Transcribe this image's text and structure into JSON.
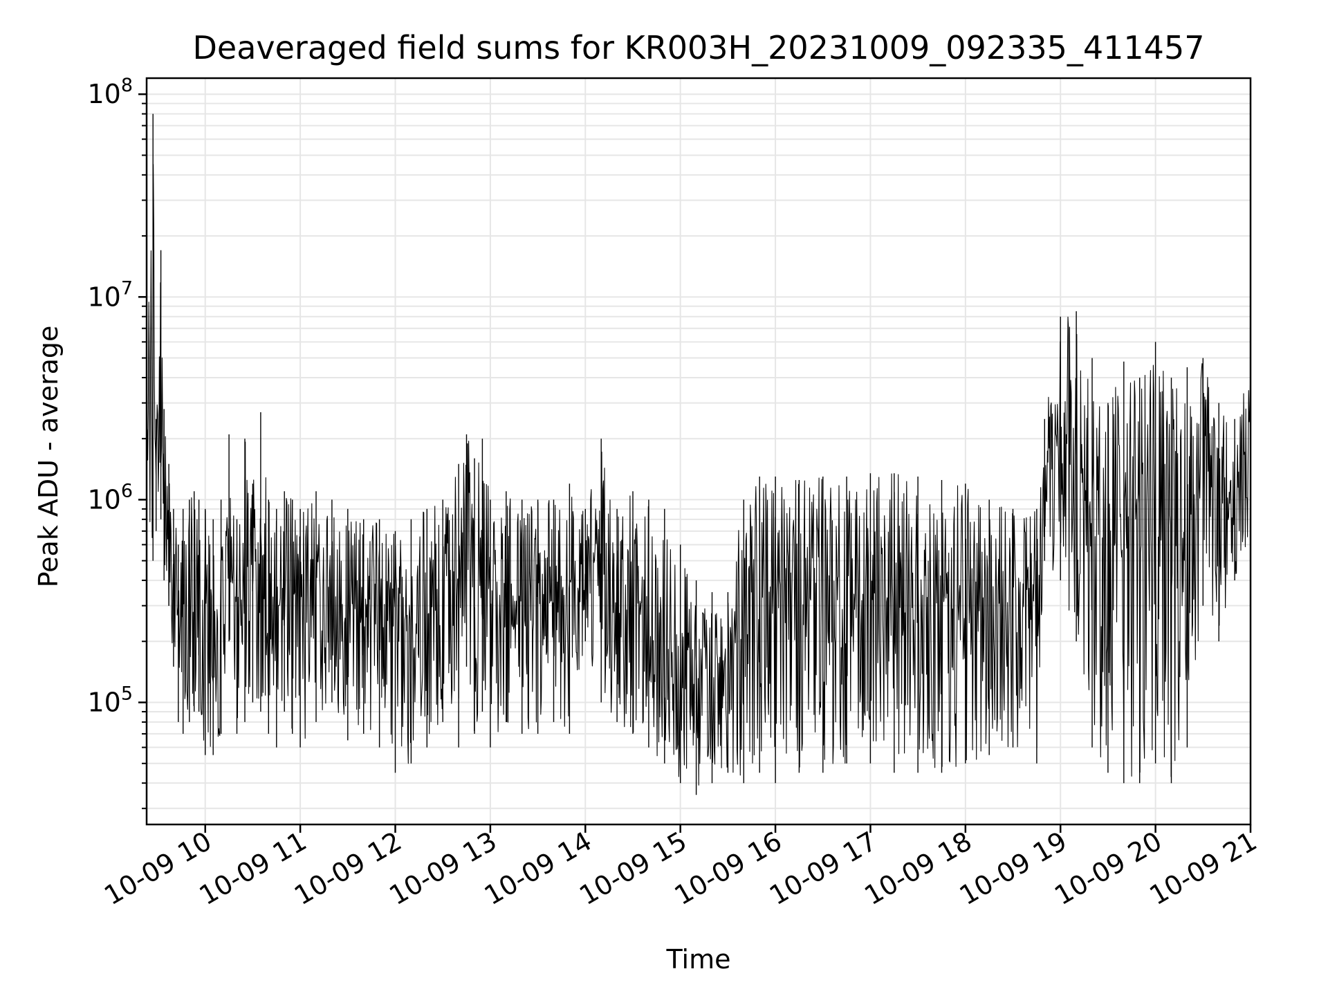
{
  "chart_data": {
    "type": "line",
    "title": "Deaveraged field sums for KR003H_20231009_092335_411457",
    "xlabel": "Time",
    "ylabel": "Peak ADU - average",
    "yscale": "log",
    "ylim": [
      25000,
      120000000
    ],
    "xlim": [
      "10-09 09:23",
      "10-09 21:00"
    ],
    "grid": true,
    "line_color": "#000000",
    "grid_color": "#e6e6e6",
    "x_ticks": [
      "10-09 10",
      "10-09 11",
      "10-09 12",
      "10-09 13",
      "10-09 14",
      "10-09 15",
      "10-09 16",
      "10-09 17",
      "10-09 18",
      "10-09 19",
      "10-09 20",
      "10-09 21"
    ],
    "y_ticks": [
      {
        "base": "10",
        "exp": "5",
        "value": 100000
      },
      {
        "base": "10",
        "exp": "6",
        "value": 1000000
      },
      {
        "base": "10",
        "exp": "7",
        "value": 10000000
      },
      {
        "base": "10",
        "exp": "8",
        "value": 100000000
      }
    ],
    "series": [
      {
        "x": [
          "10-09 09:23",
          "10-09 09:27",
          "10-09 09:29",
          "10-09 09:32",
          "10-09 09:34",
          "10-09 09:37",
          "10-09 09:40",
          "10-09 09:43",
          "10-09 09:46",
          "10-09 09:50",
          "10-09 09:53",
          "10-09 09:56",
          "10-09 10:00",
          "10-09 10:05",
          "10-09 10:10",
          "10-09 10:15",
          "10-09 10:20",
          "10-09 10:25",
          "10-09 10:30",
          "10-09 10:35",
          "10-09 10:40",
          "10-09 10:45",
          "10-09 10:50",
          "10-09 10:55",
          "10-09 11:00",
          "10-09 11:10",
          "10-09 11:20",
          "10-09 11:30",
          "10-09 11:40",
          "10-09 11:50",
          "10-09 12:00",
          "10-09 12:10",
          "10-09 12:20",
          "10-09 12:30",
          "10-09 12:40",
          "10-09 12:45",
          "10-09 12:50",
          "10-09 12:55",
          "10-09 13:00",
          "10-09 13:10",
          "10-09 13:20",
          "10-09 13:30",
          "10-09 13:40",
          "10-09 13:50",
          "10-09 14:00",
          "10-09 14:10",
          "10-09 14:20",
          "10-09 14:30",
          "10-09 14:40",
          "10-09 14:50",
          "10-09 15:00",
          "10-09 15:10",
          "10-09 15:20",
          "10-09 15:30",
          "10-09 15:40",
          "10-09 15:50",
          "10-09 16:00",
          "10-09 16:15",
          "10-09 16:30",
          "10-09 16:45",
          "10-09 17:00",
          "10-09 17:15",
          "10-09 17:30",
          "10-09 17:45",
          "10-09 18:00",
          "10-09 18:15",
          "10-09 18:30",
          "10-09 18:45",
          "10-09 18:50",
          "10-09 19:00",
          "10-09 19:10",
          "10-09 19:20",
          "10-09 19:30",
          "10-09 19:40",
          "10-09 19:50",
          "10-09 20:00",
          "10-09 20:10",
          "10-09 20:20",
          "10-09 20:30",
          "10-09 20:40",
          "10-09 20:50",
          "10-09 21:00"
        ],
        "high": [
          3000000,
          80000000,
          2500000,
          17000000,
          2800000,
          1500000,
          900000,
          600000,
          900000,
          1000000,
          1100000,
          1000000,
          900000,
          800000,
          1000000,
          2100000,
          800000,
          2000000,
          1200000,
          2700000,
          1000000,
          900000,
          1100000,
          1000000,
          900000,
          1100000,
          1000000,
          900000,
          800000,
          800000,
          700000,
          800000,
          900000,
          1000000,
          1500000,
          2100000,
          1600000,
          2000000,
          1000000,
          1100000,
          1000000,
          1000000,
          1000000,
          1200000,
          900000,
          2000000,
          900000,
          1100000,
          1000000,
          900000,
          600000,
          400000,
          350000,
          350000,
          1000000,
          1300000,
          1300000,
          1250000,
          1300000,
          1300000,
          1350000,
          1350000,
          1300000,
          1250000,
          1200000,
          1000000,
          900000,
          900000,
          2500000,
          8000000,
          8500000,
          5000000,
          3000000,
          4800000,
          4000000,
          6000000,
          4000000,
          4500000,
          5000000,
          3000000,
          2500000,
          4500000
        ],
        "low": [
          1000000,
          500000,
          700000,
          800000,
          400000,
          300000,
          150000,
          80000,
          70000,
          80000,
          90000,
          90000,
          55000,
          55000,
          70000,
          200000,
          70000,
          80000,
          100000,
          90000,
          70000,
          60000,
          90000,
          70000,
          60000,
          80000,
          100000,
          65000,
          70000,
          60000,
          45000,
          50000,
          60000,
          80000,
          60000,
          150000,
          70000,
          90000,
          60000,
          80000,
          70000,
          70000,
          80000,
          70000,
          200000,
          100000,
          80000,
          70000,
          60000,
          50000,
          40000,
          35000,
          40000,
          45000,
          40000,
          45000,
          40000,
          45000,
          45000,
          50000,
          50000,
          45000,
          45000,
          45000,
          50000,
          55000,
          60000,
          50000,
          500000,
          400000,
          200000,
          60000,
          45000,
          40000,
          40000,
          50000,
          40000,
          60000,
          300000,
          200000,
          400000,
          700000
        ]
      }
    ]
  }
}
